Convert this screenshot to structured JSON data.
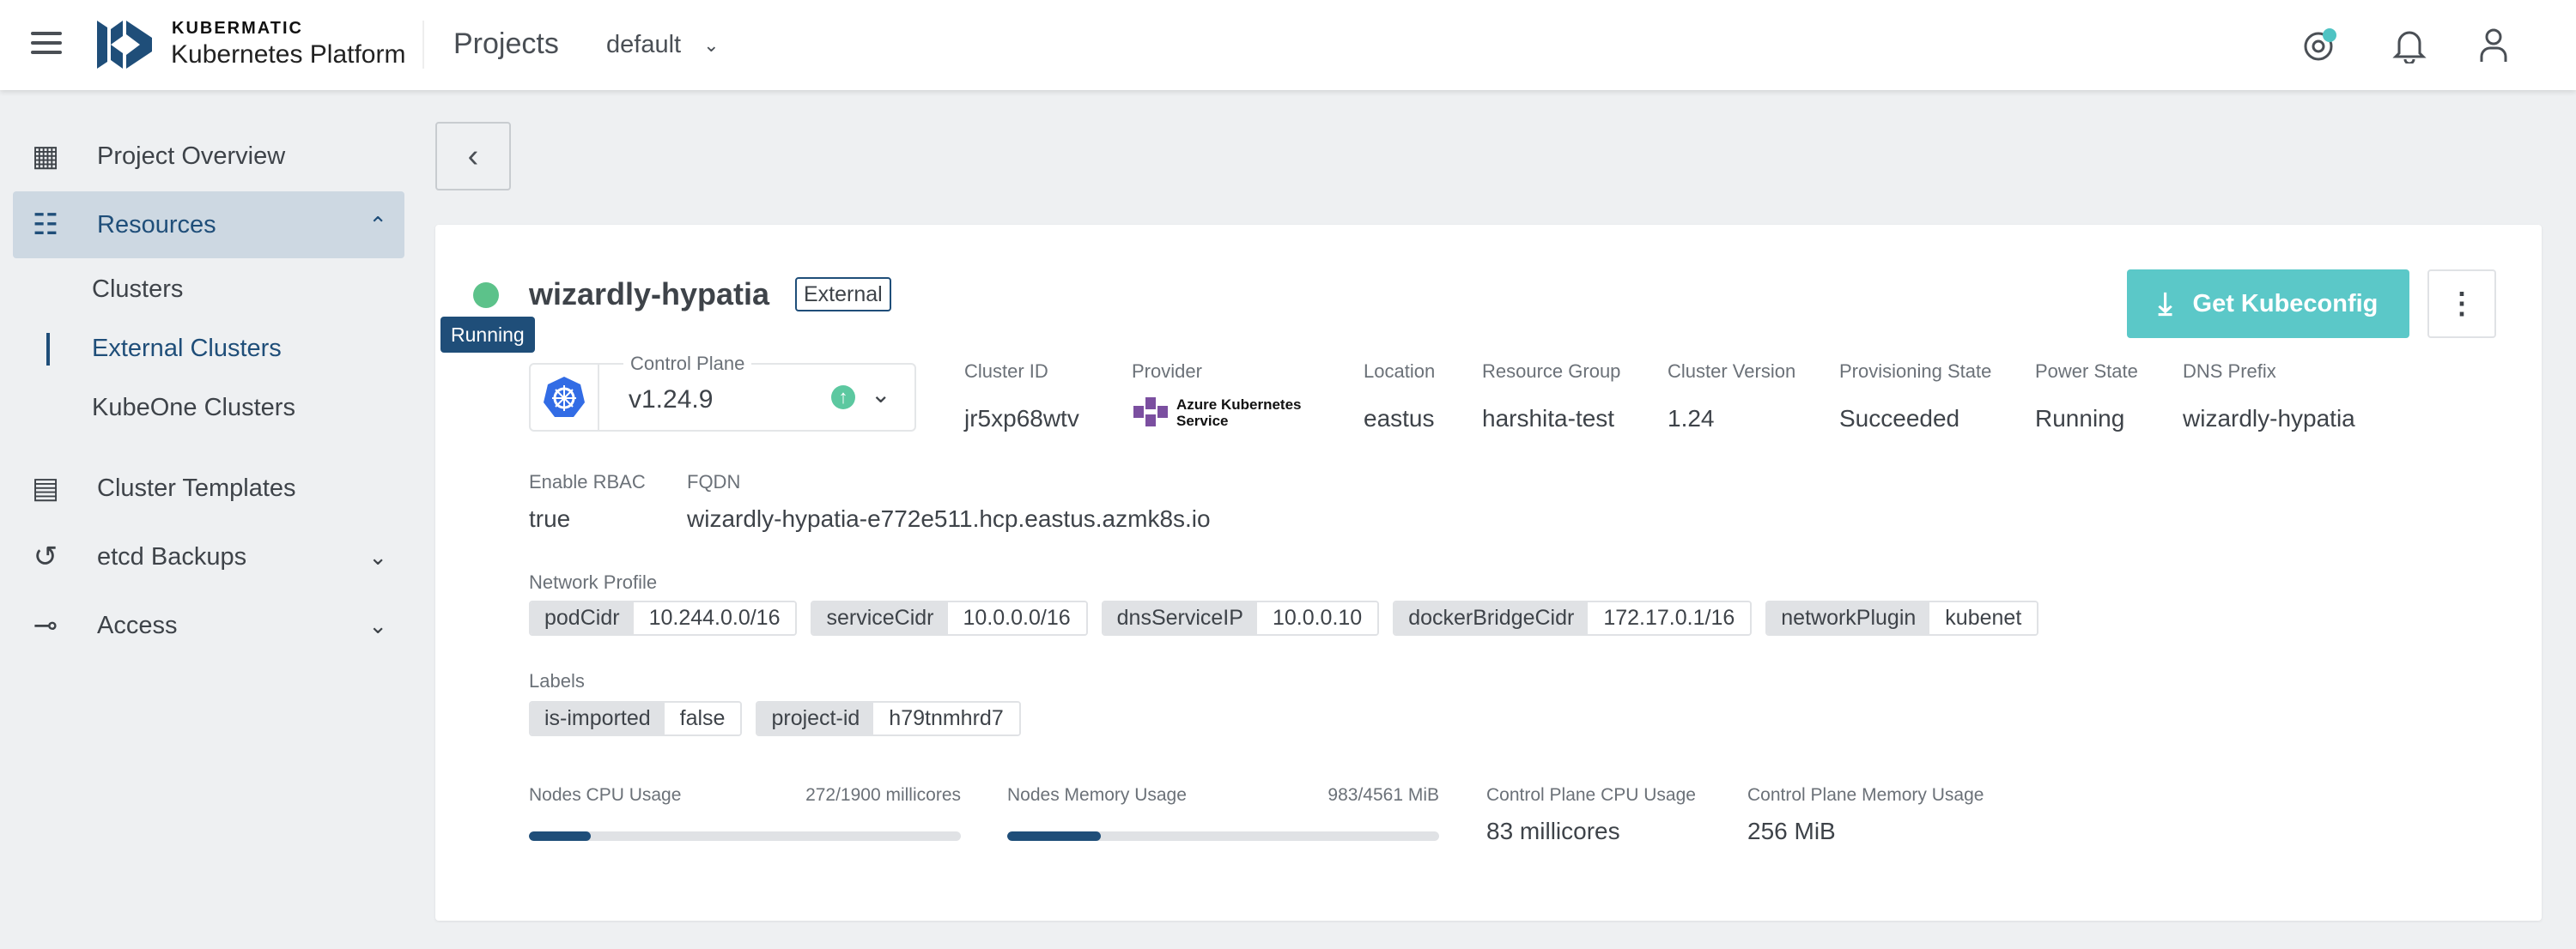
{
  "header": {
    "brand_top": "KUBERMATIC",
    "brand_bottom": "Kubernetes Platform",
    "section": "Projects",
    "project": "default"
  },
  "sidebar": {
    "items": [
      {
        "label": "Project Overview",
        "icon": "grid-icon"
      },
      {
        "label": "Resources",
        "icon": "sitemap-icon",
        "expanded": true
      },
      {
        "label": "Cluster Templates",
        "icon": "template-icon"
      },
      {
        "label": "etcd Backups",
        "icon": "history-icon"
      },
      {
        "label": "Access",
        "icon": "key-icon"
      }
    ],
    "sub_items": [
      {
        "label": "Clusters"
      },
      {
        "label": "External Clusters",
        "active": true
      },
      {
        "label": "KubeOne Clusters"
      }
    ]
  },
  "cluster": {
    "name": "wizardly-hypatia",
    "badge": "External",
    "status": "Running",
    "status_color": "#5cc28a",
    "get_kubeconfig": "Get Kubeconfig",
    "control_plane": {
      "label": "Control Plane",
      "version": "v1.24.9"
    },
    "fields": [
      {
        "label": "Cluster ID",
        "value": "jr5xp68wtv"
      },
      {
        "label": "Provider",
        "value": "Azure Kubernetes Service"
      },
      {
        "label": "Location",
        "value": "eastus"
      },
      {
        "label": "Resource Group",
        "value": "harshita-test"
      },
      {
        "label": "Cluster Version",
        "value": "1.24"
      },
      {
        "label": "Provisioning State",
        "value": "Succeeded"
      },
      {
        "label": "Power State",
        "value": "Running"
      },
      {
        "label": "DNS Prefix",
        "value": "wizardly-hypatia"
      }
    ],
    "rbac": {
      "label": "Enable RBAC",
      "value": "true"
    },
    "fqdn": {
      "label": "FQDN",
      "value": "wizardly-hypatia-e772e511.hcp.eastus.azmk8s.io"
    },
    "network_profile": {
      "label": "Network Profile",
      "items": [
        {
          "key": "podCidr",
          "value": "10.244.0.0/16"
        },
        {
          "key": "serviceCidr",
          "value": "10.0.0.0/16"
        },
        {
          "key": "dnsServiceIP",
          "value": "10.0.0.10"
        },
        {
          "key": "dockerBridgeCidr",
          "value": "172.17.0.1/16"
        },
        {
          "key": "networkPlugin",
          "value": "kubenet"
        }
      ]
    },
    "labels": {
      "label": "Labels",
      "items": [
        {
          "key": "is-imported",
          "value": "false"
        },
        {
          "key": "project-id",
          "value": "h79tnmhrd7"
        }
      ]
    },
    "usage": {
      "nodes_cpu": {
        "label": "Nodes CPU Usage",
        "value": "272/1900 millicores",
        "fraction": 0.143
      },
      "nodes_mem": {
        "label": "Nodes Memory Usage",
        "value": "983/4561 MiB",
        "fraction": 0.216
      },
      "cp_cpu": {
        "label": "Control Plane CPU Usage",
        "value": "83 millicores"
      },
      "cp_mem": {
        "label": "Control Plane Memory Usage",
        "value": "256 MiB"
      }
    }
  }
}
